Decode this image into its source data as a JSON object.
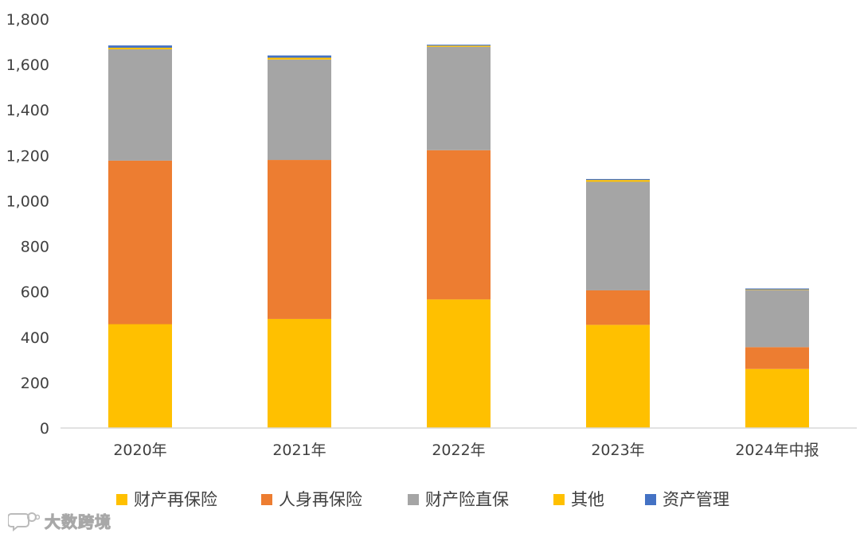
{
  "chart_data": {
    "type": "bar",
    "stacked": true,
    "title": "",
    "xlabel": "",
    "ylabel": "",
    "categories": [
      "2020年",
      "2021年",
      "2022年",
      "2023年",
      "2024年中报"
    ],
    "ylim": [
      0,
      1800
    ],
    "yticks": [
      0,
      200,
      400,
      600,
      800,
      1000,
      1200,
      1400,
      1600,
      1800
    ],
    "ytick_labels": [
      "0",
      "200",
      "400",
      "600",
      "800",
      "1,000",
      "1,200",
      "1,400",
      "1,600",
      "1,800"
    ],
    "grid": false,
    "legend_position": "bottom",
    "series": [
      {
        "name": "财产再保险",
        "color": "#FFC000",
        "values": [
          457,
          480,
          566,
          454,
          260
        ]
      },
      {
        "name": "人身再保险",
        "color": "#ED7D31",
        "values": [
          720,
          700,
          657,
          152,
          96
        ]
      },
      {
        "name": "财产险直保",
        "color": "#A5A5A5",
        "values": [
          490,
          442,
          455,
          478,
          252
        ]
      },
      {
        "name": "其他",
        "color": "#FFC000",
        "values": [
          7,
          8,
          5,
          8,
          2
        ]
      },
      {
        "name": "资产管理",
        "color": "#4472C4",
        "values": [
          10,
          10,
          2,
          4,
          2
        ]
      }
    ]
  },
  "watermark": {
    "text": "大数跨境",
    "icon": "chat-bubble-logo-icon"
  }
}
